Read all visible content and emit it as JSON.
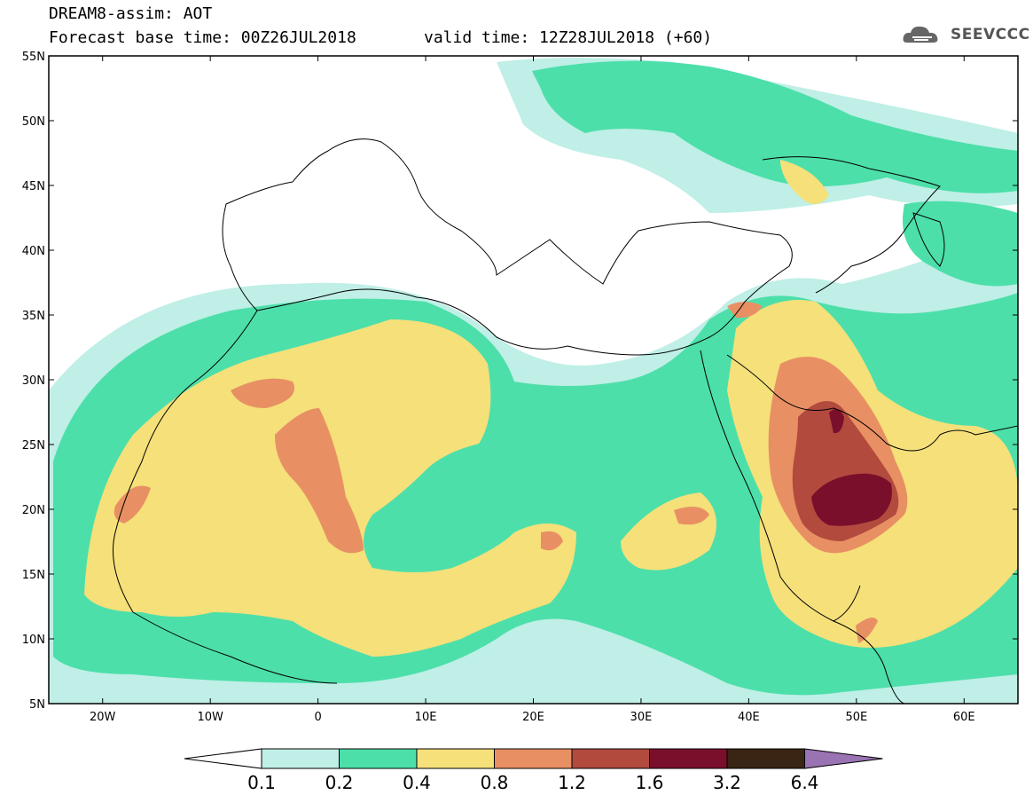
{
  "header": {
    "line1": "DREAM8-assim: AOT",
    "line2": "Forecast base time: 00Z26JUL2018",
    "valid": "valid time: 12Z28JUL2018 (+60)"
  },
  "logo": {
    "text": "SEEVCCC",
    "icon": "cloud-icon"
  },
  "axes": {
    "lat_labels": [
      "55N",
      "50N",
      "45N",
      "40N",
      "35N",
      "30N",
      "25N",
      "20N",
      "15N",
      "10N",
      "5N"
    ],
    "lon_labels": [
      "20W",
      "10W",
      "0",
      "10E",
      "20E",
      "30E",
      "40E",
      "50E",
      "60E"
    ],
    "lat_range": [
      5,
      55
    ],
    "lon_range": [
      -25,
      65
    ]
  },
  "colorbar": {
    "labels": [
      "0.1",
      "0.2",
      "0.4",
      "0.8",
      "1.2",
      "1.6",
      "3.2",
      "6.4"
    ],
    "colors": [
      "#bfefe6",
      "#4ddfaa",
      "#f5e07a",
      "#e89063",
      "#b24a3e",
      "#7a0f2c",
      "#3a2414",
      "#9a73b3"
    ]
  }
}
